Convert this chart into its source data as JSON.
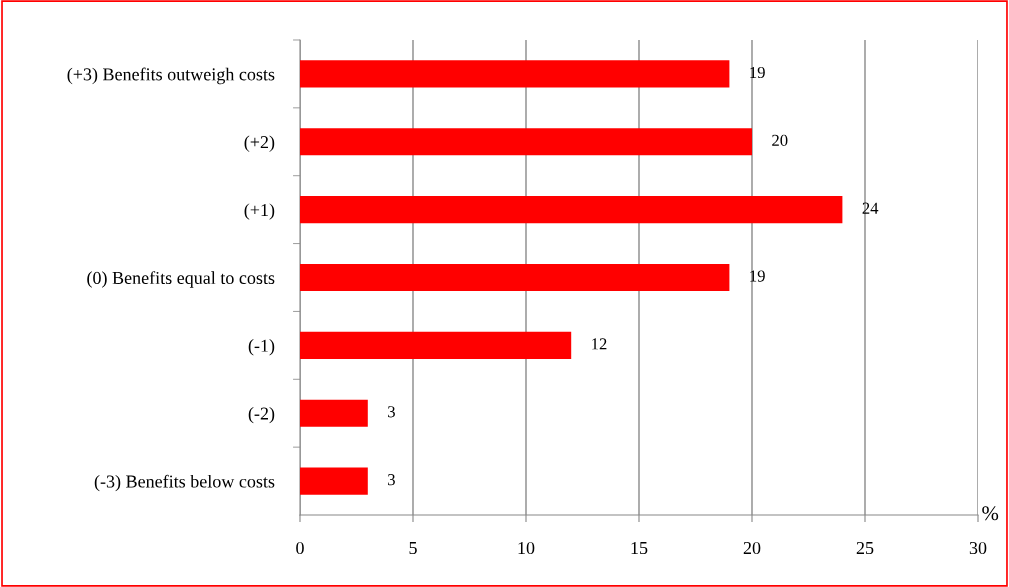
{
  "chart_data": {
    "type": "bar",
    "orientation": "horizontal",
    "categories": [
      "(+3) Benefits outweigh costs",
      "(+2)",
      "(+1)",
      "(0) Benefits equal to costs",
      "(-1)",
      "(-2)",
      "(-3) Benefits below costs"
    ],
    "values": [
      19,
      20,
      24,
      19,
      12,
      3,
      3
    ],
    "color": "#ff0000",
    "data_labels": true,
    "xlabel": "%",
    "xlim": [
      0,
      30
    ],
    "xticks": [
      0,
      5,
      10,
      15,
      20,
      25,
      30
    ],
    "grid": "x",
    "legend": false
  }
}
